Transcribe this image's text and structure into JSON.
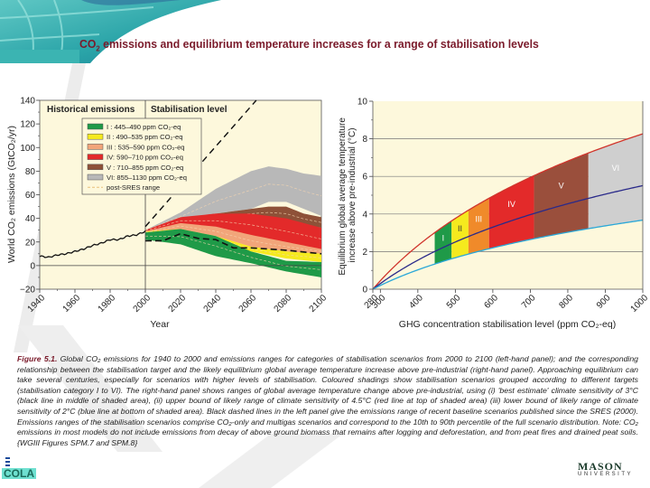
{
  "slide": {
    "title_pre": "CO",
    "title_sub": "2",
    "title_post": " emissions and equilibrium temperature increases for a range of stabilisation levels",
    "caption": {
      "label": "Figure 5.1.",
      "text": " Global CO₂ emissions for 1940 to 2000 and emissions ranges for categories of stabilisation scenarios from 2000 to 2100 (left-hand panel); and the corresponding relationship between the stabilisation target and the likely equilibrium global average temperature increase above pre-industrial (right-hand panel). Approaching equilibrium can take several centuries, especially for scenarios with higher levels of stabilisation. Coloured shadings show stabilisation scenarios grouped according to different targets (stabilisation category I to VI). The right-hand panel shows ranges of global average temperature change above pre-industrial, using (i) 'best estimate' climate sensitivity of 3°C (black line in middle of shaded area), (ii) upper bound of likely range of climate sensitivity of 4.5°C (red line at top of shaded area) (iii) lower bound of likely range of climate sensitivity of 2°C (blue line at bottom of shaded area). Black dashed lines in the left panel give the emissions range of recent baseline scenarios published since the SRES (2000). Emissions ranges of the stabilisation scenarios comprise CO₂-only and multigas scenarios and correspond to the 10th to 90th percentile of the full scenario distribution. Note: CO₂ emissions in most models do not include emissions from decay of above ground biomass that remains after logging and deforestation, and from peat fires and drained peat soils. {WGIII Figures SPM.7 and SPM.8}"
    },
    "logos": {
      "left": "COLA",
      "right_top": "MASON",
      "right_bottom": "UNIVERSITY"
    }
  },
  "chart_data": [
    {
      "type": "area",
      "title": "",
      "panel_labels": [
        "Historical emissions",
        "Stabilisation level"
      ],
      "xlabel": "Year",
      "ylabel": "World CO₂ emissions (GtCO₂/yr)",
      "xlim": [
        1940,
        2100
      ],
      "ylim": [
        -20,
        140
      ],
      "xticks": [
        1940,
        1960,
        1980,
        2000,
        2020,
        2040,
        2060,
        2080,
        2100
      ],
      "yticks": [
        -20,
        0,
        20,
        40,
        60,
        80,
        100,
        120,
        140
      ],
      "xtick_labels": [
        "1940",
        "1960",
        "1980",
        "2000",
        "2020",
        "2040",
        "2060",
        "2080",
        "2100"
      ],
      "ytick_labels": [
        "−20",
        "0",
        "20",
        "40",
        "60",
        "80",
        "100",
        "120",
        "140"
      ],
      "legend_position": "top-left",
      "legend": [
        {
          "label": "I : 445–490 ppm CO₂-eq",
          "color": "#1f9a48"
        },
        {
          "label": "II : 490–535 ppm CO₂-eq",
          "color": "#f5ea1e"
        },
        {
          "label": "III : 535–590 ppm CO₂-eq",
          "color": "#f2a57a"
        },
        {
          "label": "IV: 590–710 ppm CO₂-eq",
          "color": "#e32a2a"
        },
        {
          "label": "V : 710–855 ppm CO₂-eq",
          "color": "#8e5138"
        },
        {
          "label": "VI: 855–1130 ppm CO₂-eq",
          "color": "#b8b8b8"
        },
        {
          "label": "post-SRES range",
          "color": "#e8c07a",
          "dashed": true
        }
      ],
      "historical": {
        "x": [
          1940,
          1945,
          1950,
          1955,
          1960,
          1965,
          1970,
          1975,
          1980,
          1985,
          1990,
          1995,
          2000
        ],
        "y": [
          8,
          7,
          9,
          10,
          12,
          14,
          17,
          19,
          22,
          22,
          25,
          26,
          29
        ]
      },
      "bands": [
        {
          "name": "VI",
          "color": "#b8b8b8",
          "x": [
            2000,
            2020,
            2040,
            2060,
            2070,
            2080,
            2090,
            2100
          ],
          "upper": [
            30,
            45,
            65,
            80,
            84,
            82,
            78,
            76
          ],
          "lower": [
            30,
            38,
            44,
            48,
            54,
            54,
            48,
            42
          ]
        },
        {
          "name": "V",
          "color": "#8e5138",
          "x": [
            2000,
            2020,
            2040,
            2060,
            2070,
            2080,
            2090,
            2100
          ],
          "upper": [
            30,
            40,
            44,
            48,
            50,
            50,
            44,
            41
          ],
          "lower": [
            30,
            37,
            40,
            40,
            40,
            38,
            35,
            32
          ]
        },
        {
          "name": "IV",
          "color": "#e32a2a",
          "x": [
            2000,
            2020,
            2040,
            2060,
            2080,
            2100
          ],
          "upper": [
            30,
            41,
            44,
            44,
            40,
            32
          ],
          "lower": [
            29,
            35,
            32,
            25,
            18,
            13
          ]
        },
        {
          "name": "III",
          "color": "#f2a57a",
          "x": [
            2000,
            2020,
            2040,
            2060,
            2080,
            2100
          ],
          "upper": [
            29,
            36,
            33,
            26,
            20,
            14
          ],
          "lower": [
            28,
            31,
            25,
            16,
            12,
            10
          ]
        },
        {
          "name": "II",
          "color": "#f5ea1e",
          "x": [
            2000,
            2020,
            2040,
            2060,
            2080,
            2100
          ],
          "upper": [
            29,
            31,
            25,
            16,
            12,
            10
          ],
          "lower": [
            28,
            30,
            22,
            12,
            6,
            3
          ]
        },
        {
          "name": "I",
          "color": "#1f9a48",
          "x": [
            2000,
            2020,
            2040,
            2060,
            2080,
            2100
          ],
          "upper": [
            28,
            31,
            25,
            12,
            4,
            3
          ],
          "lower": [
            22,
            18,
            8,
            2,
            -5,
            -10
          ]
        }
      ],
      "post_sres": {
        "upper": {
          "x": [
            2000,
            2063
          ],
          "y": [
            33,
            140
          ]
        },
        "lower": {
          "x": [
            2000,
            2010,
            2020,
            2030,
            2040,
            2050,
            2060,
            2080,
            2100
          ],
          "y": [
            21,
            21,
            27,
            23,
            22,
            15,
            15,
            13,
            10
          ]
        }
      }
    },
    {
      "type": "area",
      "title": "",
      "xlabel": "GHG concentration stabilisation level (ppm CO₂-eq)",
      "ylabel": "Equilibrium global average temperature increase above pre-industrial (°C)",
      "xlim": [
        280,
        1000
      ],
      "ylim": [
        0,
        10
      ],
      "xticks": [
        280,
        300,
        400,
        500,
        600,
        700,
        800,
        900,
        1000
      ],
      "yticks": [
        0,
        2,
        4,
        6,
        8,
        10
      ],
      "xtick_labels": [
        "280",
        "300",
        "400",
        "500",
        "600",
        "700",
        "800",
        "900",
        "1000"
      ],
      "ytick_labels": [
        "0",
        "2",
        "4",
        "6",
        "8",
        "10"
      ],
      "grid": true,
      "categories": [
        {
          "name": "I",
          "from": 445,
          "to": 490,
          "color": "#1f9a48"
        },
        {
          "name": "II",
          "from": 490,
          "to": 535,
          "color": "#f5ea1e"
        },
        {
          "name": "III",
          "from": 535,
          "to": 590,
          "color": "#f08a2a"
        },
        {
          "name": "IV",
          "from": 590,
          "to": 710,
          "color": "#e32a2a"
        },
        {
          "name": "V",
          "from": 710,
          "to": 855,
          "color": "#9a4f3c"
        },
        {
          "name": "VI",
          "from": 855,
          "to": 1000,
          "color": "#cfcfcf"
        }
      ],
      "series": [
        {
          "name": "Climate sensitivity 4.5°C (upper)",
          "color": "#d0342c",
          "sensitivity": 4.5
        },
        {
          "name": "Climate sensitivity 3°C (best estimate)",
          "color": "#2a2a8a",
          "sensitivity": 3.0
        },
        {
          "name": "Climate sensitivity 2°C (lower)",
          "color": "#2aa8d8",
          "sensitivity": 2.0
        }
      ]
    }
  ]
}
